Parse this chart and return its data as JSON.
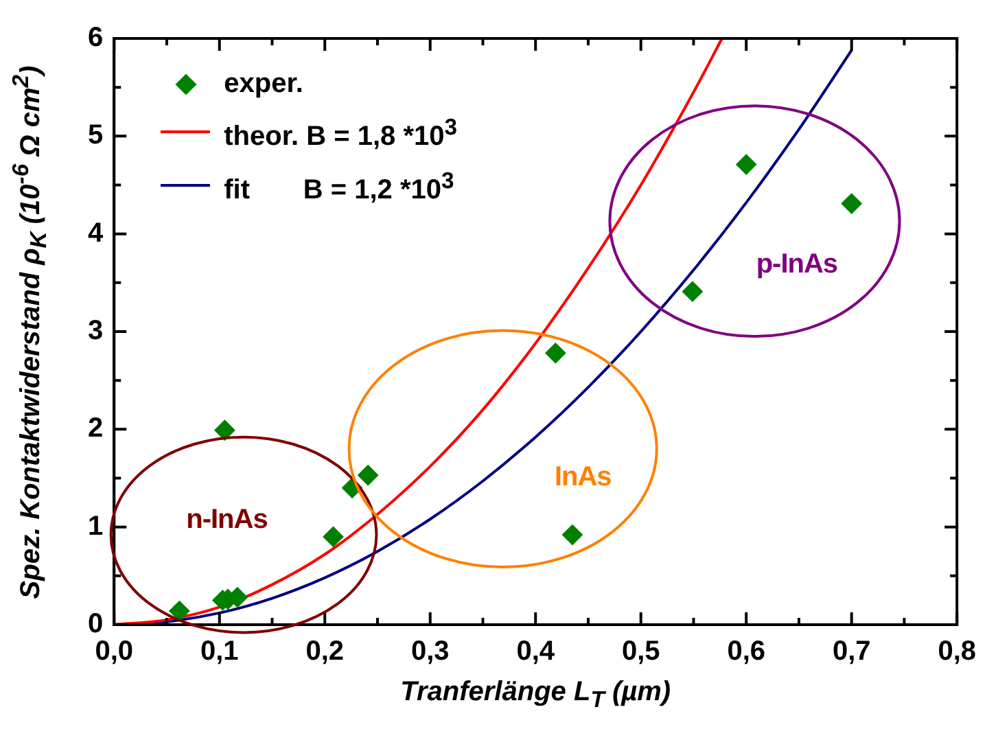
{
  "chart_data": {
    "type": "scatter",
    "xlabel": "Tranferlänge L$_{T}$ (µm)",
    "ylabel": "Spez. Kontaktwiderstand ρ$_{K}$ (10$^{-6}$ Ω cm$^{2}$)",
    "xlim": [
      0,
      0.8
    ],
    "ylim": [
      0,
      6
    ],
    "xticks": [
      {
        "value": 0,
        "label": "0,0"
      },
      {
        "value": 0.05,
        "label": null
      },
      {
        "value": 0.1,
        "label": "0,1"
      },
      {
        "value": 0.15,
        "label": null
      },
      {
        "value": 0.2,
        "label": "0,2"
      },
      {
        "value": 0.25,
        "label": null
      },
      {
        "value": 0.3,
        "label": "0,3"
      },
      {
        "value": 0.35,
        "label": null
      },
      {
        "value": 0.4,
        "label": "0,4"
      },
      {
        "value": 0.45,
        "label": null
      },
      {
        "value": 0.5,
        "label": "0,5"
      },
      {
        "value": 0.55,
        "label": null
      },
      {
        "value": 0.6,
        "label": "0,6"
      },
      {
        "value": 0.65,
        "label": null
      },
      {
        "value": 0.7,
        "label": "0,7"
      },
      {
        "value": 0.75,
        "label": null
      },
      {
        "value": 0.8,
        "label": "0,8"
      }
    ],
    "yticks": [
      0,
      {
        "value": 0.5,
        "label": null
      },
      1,
      {
        "value": 1.5,
        "label": null
      },
      2,
      {
        "value": 2.5,
        "label": null
      },
      3,
      {
        "value": 3.5,
        "label": null
      },
      4,
      {
        "value": 4.5,
        "label": null
      },
      5,
      {
        "value": 5.5,
        "label": null
      },
      6
    ],
    "grid": false,
    "legend": "top left",
    "series": [
      {
        "type": "scatter",
        "name": "exper.",
        "color": "#008000",
        "marker": "diamond",
        "x": [
          0.062,
          0.105,
          0.103,
          0.108,
          0.117,
          0.208,
          0.226,
          0.241,
          0.419,
          0.435,
          0.549,
          0.6,
          0.7
        ],
        "values": [
          0.14,
          1.99,
          0.25,
          0.26,
          0.28,
          0.9,
          1.4,
          1.53,
          2.78,
          0.92,
          3.41,
          4.71,
          4.31
        ]
      },
      {
        "type": "line",
        "name": "theor. B = 1,8 *10$^{3}$",
        "color": "#ff0000",
        "marker": "none",
        "x": [
          0,
          0.05,
          0.1,
          0.15,
          0.2,
          0.25,
          0.3,
          0.35,
          0.4,
          0.45,
          0.5,
          0.55,
          0.577
        ],
        "values": [
          0,
          0.05,
          0.18,
          0.41,
          0.72,
          1.13,
          1.62,
          2.2,
          2.88,
          3.65,
          4.5,
          5.45,
          6.0
        ]
      },
      {
        "type": "line",
        "name": "fit       B = 1,2 *10$^{3}$",
        "color": "#000080",
        "marker": "none",
        "x": [
          0,
          0.05,
          0.1,
          0.15,
          0.2,
          0.25,
          0.3,
          0.35,
          0.4,
          0.45,
          0.5,
          0.55,
          0.6,
          0.65,
          0.7
        ],
        "values": [
          0,
          0.03,
          0.12,
          0.27,
          0.48,
          0.75,
          1.08,
          1.47,
          1.92,
          2.43,
          3.0,
          3.63,
          4.32,
          5.07,
          5.88
        ]
      }
    ],
    "annotations": [
      "n-InAs",
      "InAs",
      "p-InAs"
    ]
  }
}
